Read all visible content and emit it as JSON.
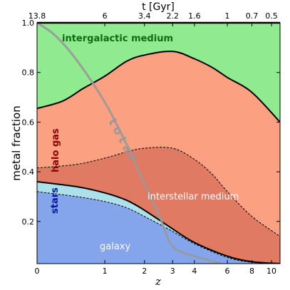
{
  "chart_data": {
    "type": "area",
    "stacked": true,
    "xlabel": "z",
    "ylabel": "metal fraction",
    "x_scale": "log(1+z)",
    "xlim": [
      0,
      11
    ],
    "ylim": [
      0.03,
      1.0
    ],
    "x_ticks": [
      0,
      1,
      2,
      3,
      4,
      6,
      8,
      10
    ],
    "y_ticks": [
      0.2,
      0.4,
      0.6,
      0.8,
      1.0
    ],
    "y_tick_labels": [
      "0.2",
      "0.4",
      "0.6",
      "0.8",
      "1.0"
    ],
    "top_axis": {
      "label": "t [Gyr]",
      "ticks": [
        13.8,
        6.0,
        3.4,
        2.2,
        1.6,
        1.0,
        0.7,
        0.5
      ],
      "tick_z": [
        0,
        1,
        2,
        3,
        4,
        6,
        8,
        10
      ]
    },
    "boundaries": [
      {
        "name": "galaxy",
        "x": [
          0,
          0.5,
          1,
          1.5,
          2,
          3,
          4,
          6,
          8,
          11
        ],
        "y": [
          0.32,
          0.3,
          0.28,
          0.255,
          0.22,
          0.16,
          0.11,
          0.055,
          0.035,
          0.03
        ]
      },
      {
        "name": "stars",
        "x": [
          0,
          0.5,
          1,
          1.5,
          2,
          3,
          4,
          6,
          8,
          11
        ],
        "y": [
          0.36,
          0.34,
          0.315,
          0.285,
          0.245,
          0.17,
          0.115,
          0.06,
          0.038,
          0.03
        ]
      },
      {
        "name": "interstellar medium",
        "x": [
          0,
          0.5,
          1,
          1.5,
          2,
          3,
          4,
          5,
          6,
          8,
          11
        ],
        "y": [
          0.415,
          0.43,
          0.455,
          0.48,
          0.495,
          0.495,
          0.45,
          0.39,
          0.32,
          0.22,
          0.14
        ]
      },
      {
        "name": "halo gas",
        "x": [
          0,
          0.3,
          0.6,
          1,
          1.5,
          2,
          3,
          4,
          5,
          6,
          8,
          11
        ],
        "y": [
          0.655,
          0.685,
          0.735,
          0.785,
          0.845,
          0.87,
          0.885,
          0.855,
          0.82,
          0.78,
          0.72,
          0.6
        ]
      }
    ],
    "total": {
      "name": "total",
      "x": [
        0,
        0.2,
        0.5,
        1,
        1.5,
        2,
        2.5,
        3,
        4,
        5,
        6
      ],
      "y": [
        1.0,
        0.95,
        0.85,
        0.68,
        0.51,
        0.35,
        0.22,
        0.1,
        0.06,
        0.04,
        0.02
      ]
    },
    "colors": {
      "galaxy": "#84a4ec",
      "stars": "#aee0ea",
      "interstellar medium": "#e07a62",
      "halo gas": "#fba080",
      "intergalactic medium": "#90ea90",
      "total": "#999999"
    },
    "region_labels": {
      "intergalactic_medium": "intergalactic medium",
      "halo_gas": "halo gas",
      "interstellar_medium": "interstellar medium",
      "stars": "stars",
      "galaxy": "galaxy",
      "total": "total"
    }
  }
}
